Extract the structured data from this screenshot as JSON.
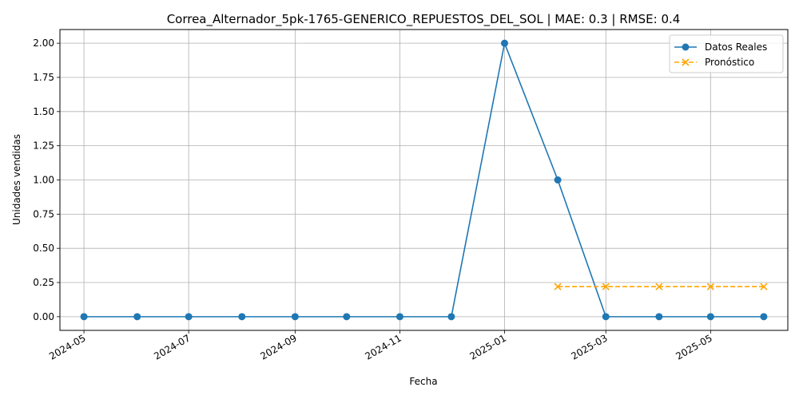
{
  "chart_data": {
    "type": "line",
    "title": "Correa_Alternador_5pk-1765-GENERICO_REPUESTOS_DEL_SOL | MAE: 0.3 | RMSE: 0.4",
    "xlabel": "Fecha",
    "ylabel": "Unidades vendidas",
    "ylim": [
      -0.1,
      2.1
    ],
    "xlim": [
      "2024-04-17",
      "2025-06-15"
    ],
    "grid": true,
    "legend_position": "top-right",
    "x_ticks": [
      "2024-05",
      "2024-07",
      "2024-09",
      "2024-11",
      "2025-01",
      "2025-03",
      "2025-05"
    ],
    "y_ticks": [
      "0.00",
      "0.25",
      "0.50",
      "0.75",
      "1.00",
      "1.25",
      "1.50",
      "1.75",
      "2.00"
    ],
    "series": [
      {
        "name": "Datos Reales",
        "color": "#1f77b4",
        "marker": "circle",
        "linestyle": "solid",
        "x": [
          "2024-05-01",
          "2024-06-01",
          "2024-07-01",
          "2024-08-01",
          "2024-09-01",
          "2024-10-01",
          "2024-11-01",
          "2024-12-01",
          "2025-01-01",
          "2025-02-01",
          "2025-03-01",
          "2025-04-01",
          "2025-05-01",
          "2025-06-01"
        ],
        "values": [
          0,
          0,
          0,
          0,
          0,
          0,
          0,
          0,
          2,
          1,
          0,
          0,
          0,
          0
        ]
      },
      {
        "name": "Pronóstico",
        "color": "#ffa500",
        "marker": "x",
        "linestyle": "dashed",
        "x": [
          "2025-02-01",
          "2025-03-01",
          "2025-04-01",
          "2025-05-01",
          "2025-06-01"
        ],
        "values": [
          0.22,
          0.22,
          0.22,
          0.22,
          0.22
        ]
      }
    ]
  }
}
